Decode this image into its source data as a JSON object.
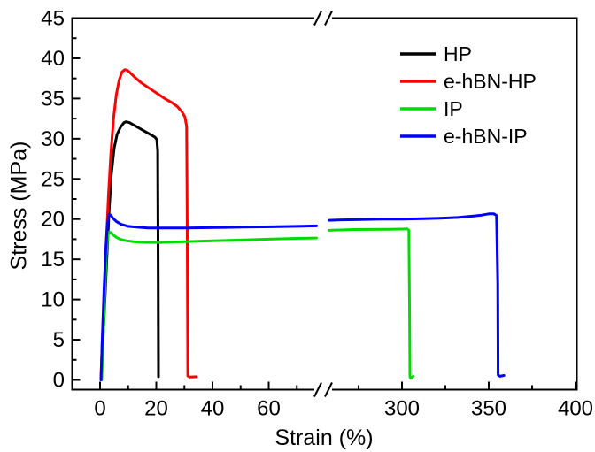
{
  "figure": {
    "xlabel": "Strain (%)",
    "ylabel": "Stress (MPa)"
  },
  "chart_data": {
    "type": "line",
    "title": "",
    "xlabel": "Strain (%)",
    "ylabel": "Stress (MPa)",
    "ylim": [
      0,
      45
    ],
    "grid": false,
    "legend_position": "top-right",
    "x_axis_break": {
      "present": true,
      "between": [
        77,
        258
      ]
    },
    "y_ticks_major": [
      0,
      5,
      10,
      15,
      20,
      25,
      30,
      35,
      40,
      45
    ],
    "y_ticks_minor": [
      2.5,
      7.5,
      12.5,
      17.5,
      22.5,
      27.5,
      32.5,
      37.5,
      42.5
    ],
    "x_segments": [
      {
        "range": [
          -10,
          77
        ],
        "ticks_major": [
          0,
          20,
          40,
          60
        ],
        "ticks_minor": [
          10,
          30,
          50,
          70
        ]
      },
      {
        "range": [
          258,
          400
        ],
        "ticks_major": [
          300,
          350,
          400
        ],
        "ticks_minor": [
          275,
          325,
          375
        ]
      }
    ],
    "series": [
      {
        "name": "HP",
        "color": "#000000",
        "tensile_strength_mpa": 32.1,
        "elongation_at_break_pct": 20.8,
        "segments": [
          [
            [
              0.4,
              0
            ],
            [
              0.9,
              4
            ],
            [
              1.6,
              9
            ],
            [
              2.4,
              15
            ],
            [
              3.2,
              21
            ],
            [
              4,
              25.5
            ],
            [
              5,
              28.8
            ],
            [
              6,
              30.5
            ],
            [
              7.2,
              31.4
            ],
            [
              8.5,
              32.0
            ],
            [
              9.3,
              32.1
            ],
            [
              10.5,
              32.0
            ],
            [
              12,
              31.7
            ],
            [
              14,
              31.3
            ],
            [
              16,
              30.9
            ],
            [
              18,
              30.5
            ],
            [
              19.5,
              30.2
            ],
            [
              20.2,
              29.9
            ],
            [
              20.5,
              28.5
            ],
            [
              20.7,
              12
            ],
            [
              20.8,
              0.4
            ]
          ]
        ]
      },
      {
        "name": "e-hBN-HP",
        "color": "#ff0000",
        "tensile_strength_mpa": 38.6,
        "elongation_at_break_pct": 31.2,
        "segments": [
          [
            [
              0.3,
              0
            ],
            [
              0.8,
              5
            ],
            [
              1.5,
              11
            ],
            [
              2.2,
              17
            ],
            [
              3,
              23
            ],
            [
              3.8,
              28
            ],
            [
              4.8,
              32.5
            ],
            [
              5.8,
              35.5
            ],
            [
              6.8,
              37.3
            ],
            [
              7.8,
              38.3
            ],
            [
              8.8,
              38.6
            ],
            [
              9.8,
              38.5
            ],
            [
              11,
              38.1
            ],
            [
              12.5,
              37.6
            ],
            [
              14.5,
              37.0
            ],
            [
              17,
              36.4
            ],
            [
              20,
              35.7
            ],
            [
              23,
              35.0
            ],
            [
              25.5,
              34.5
            ],
            [
              27.5,
              34.0
            ],
            [
              29,
              33.4
            ],
            [
              30.2,
              32.7
            ],
            [
              30.8,
              31.5
            ],
            [
              31.0,
              20
            ],
            [
              31.2,
              0.5
            ],
            [
              31.9,
              0.35
            ],
            [
              34.3,
              0.4
            ]
          ]
        ]
      },
      {
        "name": "IP",
        "color": "#00dc00",
        "tensile_strength_mpa": 18.8,
        "elongation_at_break_pct": 304.5,
        "segments": [
          [
            [
              0.6,
              0
            ],
            [
              1.1,
              5
            ],
            [
              1.7,
              11
            ],
            [
              2.2,
              15.5
            ],
            [
              2.7,
              17.8
            ],
            [
              3.2,
              18.4
            ],
            [
              3.9,
              18.3
            ],
            [
              4.8,
              18.0
            ],
            [
              6,
              17.7
            ],
            [
              7.5,
              17.45
            ],
            [
              9.5,
              17.3
            ],
            [
              12,
              17.2
            ],
            [
              16,
              17.1
            ],
            [
              22,
              17.1
            ],
            [
              30,
              17.2
            ],
            [
              40,
              17.3
            ],
            [
              50,
              17.4
            ],
            [
              60,
              17.5
            ],
            [
              70,
              17.6
            ],
            [
              77,
              17.65
            ]
          ],
          [
            [
              258,
              18.6
            ],
            [
              264,
              18.65
            ],
            [
              272,
              18.7
            ],
            [
              282,
              18.72
            ],
            [
              292,
              18.74
            ],
            [
              300,
              18.76
            ],
            [
              303,
              18.78
            ],
            [
              304,
              18.6
            ],
            [
              304.4,
              8
            ],
            [
              304.6,
              0.4
            ],
            [
              305,
              0.2
            ],
            [
              306.5,
              0.45
            ]
          ]
        ]
      },
      {
        "name": "e-hBN-IP",
        "color": "#0000ff",
        "tensile_strength_mpa": 20.7,
        "elongation_at_break_pct": 355.4,
        "segments": [
          [
            [
              0.3,
              0
            ],
            [
              0.8,
              5
            ],
            [
              1.4,
              11
            ],
            [
              2,
              16
            ],
            [
              2.6,
              19.3
            ],
            [
              3.2,
              20.6
            ],
            [
              3.8,
              20.5
            ],
            [
              4.6,
              20.1
            ],
            [
              5.8,
              19.7
            ],
            [
              7.5,
              19.35
            ],
            [
              10,
              19.1
            ],
            [
              13,
              19.0
            ],
            [
              17,
              18.9
            ],
            [
              23,
              18.9
            ],
            [
              31,
              18.9
            ],
            [
              41,
              18.95
            ],
            [
              51,
              19.0
            ],
            [
              61,
              19.05
            ],
            [
              70,
              19.1
            ],
            [
              77,
              19.15
            ]
          ],
          [
            [
              258,
              19.85
            ],
            [
              266,
              19.9
            ],
            [
              276,
              19.95
            ],
            [
              288,
              20.0
            ],
            [
              300,
              20.0
            ],
            [
              312,
              20.05
            ],
            [
              322,
              20.1
            ],
            [
              332,
              20.2
            ],
            [
              340,
              20.35
            ],
            [
              346,
              20.5
            ],
            [
              350,
              20.65
            ],
            [
              353,
              20.65
            ],
            [
              354.5,
              20.45
            ],
            [
              355.2,
              12
            ],
            [
              355.4,
              0.6
            ],
            [
              356.5,
              0.45
            ],
            [
              358.8,
              0.55
            ]
          ]
        ]
      }
    ]
  }
}
